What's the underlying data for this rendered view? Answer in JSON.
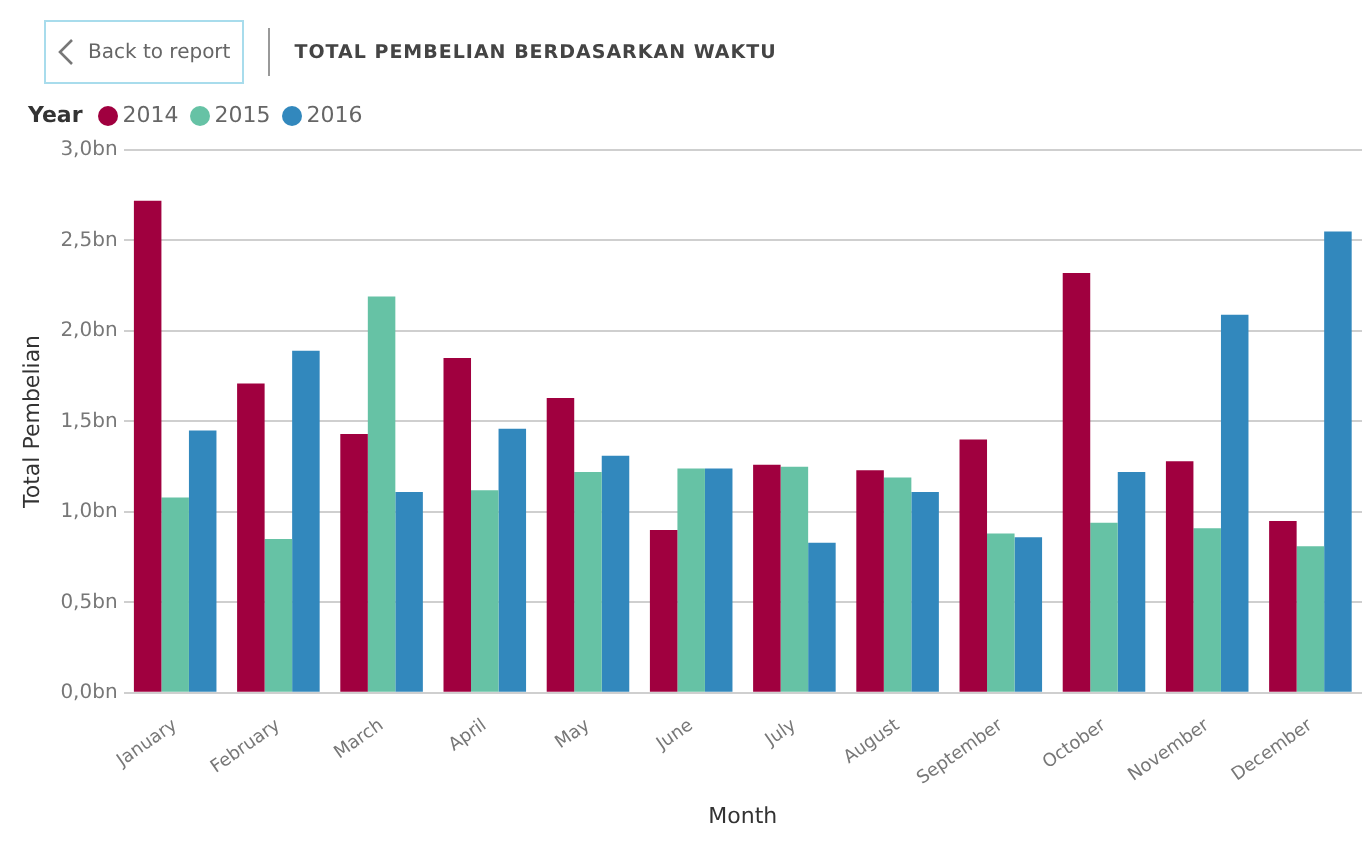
{
  "chart_data": {
    "type": "bar",
    "title": "TOTAL PEMBELIAN BERDASARKAN WAKTU",
    "xlabel": "Month",
    "ylabel": "Total Pembelian",
    "legend_title": "Year",
    "legend": "top left",
    "grid": "y",
    "annotations": [
      "Back to report"
    ],
    "categories": [
      "January",
      "February",
      "March",
      "April",
      "May",
      "June",
      "July",
      "August",
      "September",
      "October",
      "November",
      "December"
    ],
    "ylim": [
      0,
      3
    ],
    "yticks": [
      {
        "value": 0,
        "label": "0,0bn"
      },
      {
        "value": 0.5,
        "label": "0,5bn"
      },
      {
        "value": 1,
        "label": "1,0bn"
      },
      {
        "value": 1.5,
        "label": "1,5bn"
      },
      {
        "value": 2,
        "label": "2,0bn"
      },
      {
        "value": 2.5,
        "label": "2,5bn"
      },
      {
        "value": 3,
        "label": "3,0bn"
      }
    ],
    "series": [
      {
        "name": "2014",
        "color": "#a0003f",
        "values": [
          2.72,
          1.71,
          1.43,
          1.85,
          1.63,
          0.9,
          1.26,
          1.23,
          1.4,
          2.32,
          1.28,
          0.95
        ]
      },
      {
        "name": "2015",
        "color": "#66c2a5",
        "values": [
          1.08,
          0.85,
          2.19,
          1.12,
          1.22,
          1.24,
          1.25,
          1.19,
          0.88,
          0.94,
          0.91,
          0.81
        ]
      },
      {
        "name": "2016",
        "color": "#3288bd",
        "values": [
          1.45,
          1.89,
          1.11,
          1.46,
          1.31,
          1.24,
          0.83,
          1.11,
          0.86,
          1.22,
          2.09,
          2.55
        ]
      }
    ]
  }
}
